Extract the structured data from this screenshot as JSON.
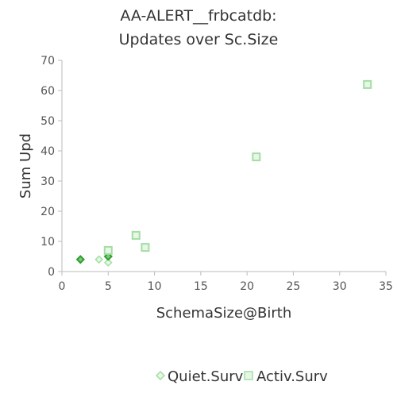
{
  "chart_data": {
    "type": "scatter",
    "title": "AA-ALERT__frbcatdb:",
    "subtitle": "Updates over Sc.Size",
    "xlabel": "SchemaSize@Birth",
    "ylabel": "Sum Upd",
    "xlim": [
      0,
      35
    ],
    "ylim": [
      0,
      70
    ],
    "x_ticks": [
      0,
      5,
      10,
      15,
      20,
      25,
      30,
      35
    ],
    "y_ticks": [
      0,
      10,
      20,
      30,
      40,
      50,
      60,
      70
    ],
    "grid": false,
    "legend_position": "bottom",
    "series": [
      {
        "name": "Quiet.Surv",
        "marker": "diamond",
        "color": "#a3dea3",
        "points": [
          {
            "x": 2,
            "y": 4
          },
          {
            "x": 4,
            "y": 4
          },
          {
            "x": 5,
            "y": 3
          },
          {
            "x": 5,
            "y": 5
          }
        ]
      },
      {
        "name": "Activ.Surv",
        "marker": "square",
        "color": "#a3dea3",
        "points": [
          {
            "x": 5,
            "y": 7
          },
          {
            "x": 8,
            "y": 12
          },
          {
            "x": 9,
            "y": 8
          },
          {
            "x": 21,
            "y": 38
          },
          {
            "x": 33,
            "y": 62
          }
        ]
      }
    ]
  }
}
